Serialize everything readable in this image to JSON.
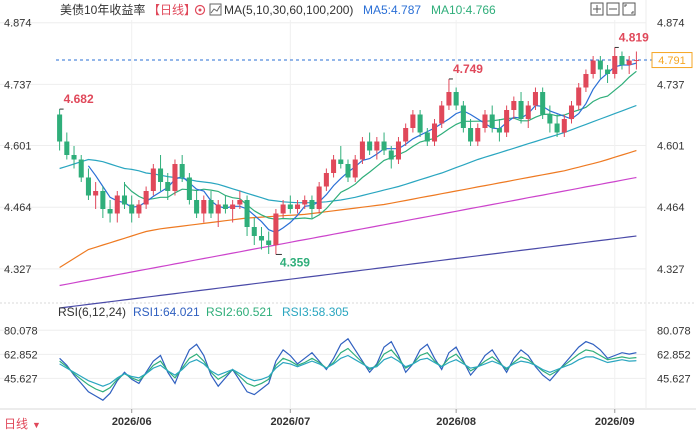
{
  "header": {
    "title": "美债10年收益率",
    "period": "【日线】",
    "ma_label": "MA(5,10,30,60,100,200)",
    "ma5": "MA5:4.787",
    "ma10": "MA10:4.766"
  },
  "rsi_header": {
    "label": "RSI(6,12,24)",
    "rsi1": "RSI1:64.021",
    "rsi2": "RSI2:60.521",
    "rsi3": "RSI3:58.305"
  },
  "last_price": "4.791",
  "period_button": "日线",
  "colors": {
    "up": "#e0485a",
    "down": "#2fae7a",
    "ma5": "#2a6fd6",
    "ma10": "#2fae7a",
    "ma30": "#2aa6c0",
    "ma60": "#ee7a22",
    "ma100": "#cc44cc",
    "ma200": "#4a4aa8",
    "rsi1": "#3060c0",
    "rsi2": "#2fae7a",
    "rsi3": "#2aa6c0",
    "grid": "#d8d8d8",
    "dashed": "#2a6fd6",
    "tag": "#f5a623"
  },
  "chart_data": [
    {
      "type": "candlestick",
      "y_ticks": [
        "4.874",
        "4.737",
        "4.601",
        "4.464",
        "4.327"
      ],
      "y_tick_values": [
        4.874,
        4.737,
        4.601,
        4.464,
        4.327
      ],
      "ylim": [
        4.28,
        4.88
      ],
      "x_ticks": [
        "2026/06",
        "2026/07",
        "2026/08",
        "2026/09"
      ],
      "x_tick_index": [
        10,
        32,
        55,
        77
      ],
      "annotations": [
        {
          "text": "4.682",
          "index": 0,
          "value": 4.682,
          "color": "#e0485a"
        },
        {
          "text": "4.359",
          "index": 30,
          "value": 4.359,
          "color": "#2fae7a"
        },
        {
          "text": "4.749",
          "index": 54,
          "value": 4.749,
          "color": "#e0485a"
        },
        {
          "text": "4.819",
          "index": 77,
          "value": 4.819,
          "color": "#e0485a"
        }
      ],
      "last_value": 4.791,
      "candles": [
        [
          4.67,
          4.682,
          4.59,
          4.61
        ],
        [
          4.61,
          4.63,
          4.57,
          4.58
        ],
        [
          4.58,
          4.6,
          4.55,
          4.57
        ],
        [
          4.57,
          4.58,
          4.52,
          4.53
        ],
        [
          4.53,
          4.55,
          4.48,
          4.49
        ],
        [
          4.49,
          4.52,
          4.46,
          4.5
        ],
        [
          4.5,
          4.51,
          4.44,
          4.46
        ],
        [
          4.46,
          4.48,
          4.43,
          4.45
        ],
        [
          4.45,
          4.5,
          4.43,
          4.49
        ],
        [
          4.49,
          4.52,
          4.46,
          4.47
        ],
        [
          4.47,
          4.49,
          4.43,
          4.45
        ],
        [
          4.45,
          4.48,
          4.44,
          4.47
        ],
        [
          4.47,
          4.51,
          4.46,
          4.5
        ],
        [
          4.5,
          4.56,
          4.49,
          4.55
        ],
        [
          4.55,
          4.58,
          4.5,
          4.52
        ],
        [
          4.52,
          4.54,
          4.48,
          4.5
        ],
        [
          4.5,
          4.57,
          4.49,
          4.56
        ],
        [
          4.56,
          4.58,
          4.52,
          4.53
        ],
        [
          4.53,
          4.54,
          4.47,
          4.48
        ],
        [
          4.48,
          4.5,
          4.44,
          4.45
        ],
        [
          4.45,
          4.49,
          4.43,
          4.48
        ],
        [
          4.48,
          4.5,
          4.44,
          4.45
        ],
        [
          4.45,
          4.48,
          4.42,
          4.47
        ],
        [
          4.47,
          4.49,
          4.45,
          4.46
        ],
        [
          4.46,
          4.48,
          4.43,
          4.47
        ],
        [
          4.47,
          4.5,
          4.46,
          4.48
        ],
        [
          4.48,
          4.49,
          4.4,
          4.42
        ],
        [
          4.42,
          4.44,
          4.38,
          4.4
        ],
        [
          4.4,
          4.42,
          4.37,
          4.39
        ],
        [
          4.39,
          4.41,
          4.36,
          4.38
        ],
        [
          4.38,
          4.46,
          4.359,
          4.45
        ],
        [
          4.45,
          4.48,
          4.44,
          4.47
        ],
        [
          4.47,
          4.49,
          4.45,
          4.46
        ],
        [
          4.46,
          4.48,
          4.45,
          4.47
        ],
        [
          4.47,
          4.49,
          4.46,
          4.48
        ],
        [
          4.48,
          4.49,
          4.44,
          4.46
        ],
        [
          4.46,
          4.52,
          4.45,
          4.51
        ],
        [
          4.51,
          4.55,
          4.5,
          4.54
        ],
        [
          4.54,
          4.58,
          4.53,
          4.57
        ],
        [
          4.57,
          4.6,
          4.55,
          4.56
        ],
        [
          4.56,
          4.57,
          4.52,
          4.53
        ],
        [
          4.53,
          4.58,
          4.52,
          4.57
        ],
        [
          4.57,
          4.62,
          4.56,
          4.61
        ],
        [
          4.61,
          4.63,
          4.58,
          4.59
        ],
        [
          4.59,
          4.62,
          4.57,
          4.61
        ],
        [
          4.61,
          4.63,
          4.58,
          4.59
        ],
        [
          4.59,
          4.6,
          4.55,
          4.57
        ],
        [
          4.57,
          4.62,
          4.56,
          4.61
        ],
        [
          4.61,
          4.65,
          4.6,
          4.64
        ],
        [
          4.64,
          4.68,
          4.63,
          4.67
        ],
        [
          4.67,
          4.68,
          4.62,
          4.63
        ],
        [
          4.63,
          4.64,
          4.6,
          4.61
        ],
        [
          4.61,
          4.66,
          4.6,
          4.65
        ],
        [
          4.65,
          4.7,
          4.64,
          4.69
        ],
        [
          4.69,
          4.749,
          4.68,
          4.72
        ],
        [
          4.72,
          4.73,
          4.68,
          4.69
        ],
        [
          4.69,
          4.7,
          4.63,
          4.64
        ],
        [
          4.64,
          4.66,
          4.6,
          4.61
        ],
        [
          4.61,
          4.65,
          4.6,
          4.64
        ],
        [
          4.64,
          4.68,
          4.63,
          4.67
        ],
        [
          4.67,
          4.69,
          4.63,
          4.64
        ],
        [
          4.64,
          4.66,
          4.61,
          4.63
        ],
        [
          4.63,
          4.69,
          4.62,
          4.68
        ],
        [
          4.68,
          4.71,
          4.66,
          4.7
        ],
        [
          4.7,
          4.72,
          4.65,
          4.66
        ],
        [
          4.66,
          4.7,
          4.64,
          4.69
        ],
        [
          4.69,
          4.73,
          4.68,
          4.72
        ],
        [
          4.72,
          4.73,
          4.66,
          4.67
        ],
        [
          4.67,
          4.69,
          4.63,
          4.65
        ],
        [
          4.65,
          4.67,
          4.62,
          4.63
        ],
        [
          4.63,
          4.67,
          4.62,
          4.66
        ],
        [
          4.66,
          4.7,
          4.65,
          4.69
        ],
        [
          4.69,
          4.74,
          4.68,
          4.73
        ],
        [
          4.73,
          4.77,
          4.72,
          4.76
        ],
        [
          4.76,
          4.8,
          4.75,
          4.79
        ],
        [
          4.79,
          4.8,
          4.75,
          4.77
        ],
        [
          4.77,
          4.78,
          4.74,
          4.76
        ],
        [
          4.76,
          4.819,
          4.75,
          4.8
        ],
        [
          4.8,
          4.81,
          4.77,
          4.78
        ],
        [
          4.78,
          4.8,
          4.76,
          4.79
        ],
        [
          4.79,
          4.81,
          4.77,
          4.791
        ]
      ],
      "ma": {
        "ma30": [
          4.55,
          4.555,
          4.56,
          4.565,
          4.57,
          4.568,
          4.565,
          4.56,
          4.555,
          4.55,
          4.548,
          4.545,
          4.54,
          4.538,
          4.535,
          4.532,
          4.53,
          4.528,
          4.525,
          4.522,
          4.52,
          4.518,
          4.515,
          4.51,
          4.505,
          4.5,
          4.495,
          4.49,
          4.485,
          4.48,
          4.478,
          4.476,
          4.475,
          4.474,
          4.474,
          4.474,
          4.475,
          4.476,
          4.478,
          4.48,
          4.483,
          4.486,
          4.49,
          4.494,
          4.498,
          4.502,
          4.506,
          4.51,
          4.515,
          4.52,
          4.525,
          4.53,
          4.535,
          4.54,
          4.546,
          4.552,
          4.558,
          4.564,
          4.57,
          4.575,
          4.58,
          4.585,
          4.59,
          4.595,
          4.6,
          4.605,
          4.61,
          4.615,
          4.62,
          4.625,
          4.63,
          4.636,
          4.642,
          4.648,
          4.654,
          4.66,
          4.666,
          4.672,
          4.678,
          4.684,
          4.69
        ],
        "ma60": [
          4.33,
          4.34,
          4.35,
          4.36,
          4.37,
          4.375,
          4.38,
          4.385,
          4.39,
          4.395,
          4.4,
          4.405,
          4.41,
          4.413,
          4.416,
          4.418,
          4.42,
          4.422,
          4.424,
          4.426,
          4.428,
          4.43,
          4.432,
          4.434,
          4.436,
          4.438,
          4.44,
          4.441,
          4.442,
          4.443,
          4.444,
          4.445,
          4.446,
          4.447,
          4.448,
          4.45,
          4.452,
          4.454,
          4.456,
          4.458,
          4.46,
          4.462,
          4.464,
          4.466,
          4.468,
          4.47,
          4.473,
          4.476,
          4.479,
          4.482,
          4.485,
          4.488,
          4.491,
          4.494,
          4.497,
          4.5,
          4.503,
          4.506,
          4.509,
          4.512,
          4.515,
          4.518,
          4.521,
          4.524,
          4.527,
          4.53,
          4.533,
          4.536,
          4.539,
          4.542,
          4.545,
          4.549,
          4.553,
          4.557,
          4.561,
          4.565,
          4.57,
          4.575,
          4.58,
          4.585,
          4.59
        ],
        "ma100": [
          4.29,
          4.293,
          4.296,
          4.299,
          4.302,
          4.305,
          4.308,
          4.311,
          4.314,
          4.317,
          4.32,
          4.323,
          4.326,
          4.329,
          4.332,
          4.335,
          4.338,
          4.341,
          4.344,
          4.347,
          4.35,
          4.353,
          4.356,
          4.359,
          4.362,
          4.365,
          4.368,
          4.371,
          4.374,
          4.377,
          4.38,
          4.383,
          4.386,
          4.389,
          4.392,
          4.395,
          4.398,
          4.401,
          4.404,
          4.407,
          4.41,
          4.413,
          4.416,
          4.419,
          4.422,
          4.425,
          4.428,
          4.431,
          4.434,
          4.437,
          4.44,
          4.443,
          4.446,
          4.449,
          4.452,
          4.455,
          4.458,
          4.461,
          4.464,
          4.467,
          4.47,
          4.473,
          4.476,
          4.479,
          4.482,
          4.485,
          4.488,
          4.491,
          4.494,
          4.497,
          4.5,
          4.503,
          4.506,
          4.509,
          4.512,
          4.515,
          4.518,
          4.521,
          4.524,
          4.527,
          4.53
        ],
        "ma200": [
          4.24,
          4.242,
          4.244,
          4.246,
          4.248,
          4.25,
          4.252,
          4.254,
          4.256,
          4.258,
          4.26,
          4.262,
          4.264,
          4.266,
          4.268,
          4.27,
          4.272,
          4.274,
          4.276,
          4.278,
          4.28,
          4.282,
          4.284,
          4.286,
          4.288,
          4.29,
          4.292,
          4.294,
          4.296,
          4.298,
          4.3,
          4.302,
          4.304,
          4.306,
          4.308,
          4.31,
          4.312,
          4.314,
          4.316,
          4.318,
          4.32,
          4.322,
          4.324,
          4.326,
          4.328,
          4.33,
          4.332,
          4.334,
          4.336,
          4.338,
          4.34,
          4.342,
          4.344,
          4.346,
          4.348,
          4.35,
          4.352,
          4.354,
          4.356,
          4.358,
          4.36,
          4.362,
          4.364,
          4.366,
          4.368,
          4.37,
          4.372,
          4.374,
          4.376,
          4.378,
          4.38,
          4.382,
          4.384,
          4.386,
          4.388,
          4.39,
          4.392,
          4.394,
          4.396,
          4.398,
          4.4
        ]
      }
    },
    {
      "type": "line",
      "y_ticks": [
        "80.078",
        "62.852",
        "45.627"
      ],
      "y_tick_values": [
        80.078,
        62.852,
        45.627
      ],
      "ylim": [
        28,
        86
      ],
      "series": [
        {
          "name": "RSI1",
          "color": "#3060c0",
          "values": [
            60,
            55,
            48,
            42,
            36,
            33,
            30,
            35,
            44,
            50,
            45,
            42,
            50,
            58,
            62,
            50,
            42,
            55,
            66,
            70,
            62,
            48,
            40,
            46,
            52,
            44,
            36,
            34,
            38,
            42,
            58,
            66,
            62,
            56,
            60,
            64,
            58,
            52,
            60,
            70,
            74,
            66,
            58,
            50,
            56,
            68,
            72,
            62,
            50,
            56,
            66,
            70,
            60,
            52,
            64,
            68,
            58,
            48,
            54,
            62,
            66,
            58,
            50,
            60,
            66,
            62,
            54,
            48,
            44,
            50,
            56,
            62,
            68,
            72,
            70,
            66,
            60,
            62,
            64,
            63,
            64
          ]
        },
        {
          "name": "RSI2",
          "color": "#2fae7a",
          "values": [
            58,
            54,
            49,
            45,
            41,
            38,
            36,
            39,
            45,
            49,
            46,
            44,
            49,
            55,
            58,
            51,
            46,
            53,
            60,
            63,
            58,
            50,
            45,
            48,
            52,
            47,
            42,
            40,
            42,
            45,
            55,
            60,
            58,
            55,
            57,
            60,
            57,
            53,
            57,
            64,
            67,
            62,
            57,
            52,
            55,
            63,
            66,
            60,
            53,
            56,
            62,
            64,
            58,
            54,
            60,
            63,
            57,
            51,
            54,
            58,
            61,
            57,
            52,
            57,
            61,
            59,
            55,
            51,
            48,
            51,
            55,
            59,
            63,
            66,
            65,
            62,
            59,
            60,
            61,
            60,
            60.5
          ]
        },
        {
          "name": "RSI3",
          "color": "#2aa6c0",
          "values": [
            56,
            53,
            50,
            47,
            44,
            42,
            40,
            42,
            46,
            49,
            47,
            46,
            49,
            53,
            55,
            51,
            48,
            52,
            57,
            59,
            56,
            51,
            48,
            50,
            52,
            49,
            46,
            44,
            45,
            47,
            53,
            57,
            56,
            54,
            56,
            58,
            56,
            53,
            56,
            60,
            62,
            59,
            56,
            53,
            54,
            59,
            61,
            58,
            54,
            56,
            59,
            60,
            57,
            54,
            57,
            59,
            56,
            53,
            54,
            56,
            58,
            56,
            53,
            56,
            58,
            57,
            55,
            52,
            50,
            52,
            54,
            56,
            59,
            61,
            61,
            59,
            57,
            58,
            59,
            58,
            58.3
          ]
        }
      ]
    }
  ]
}
